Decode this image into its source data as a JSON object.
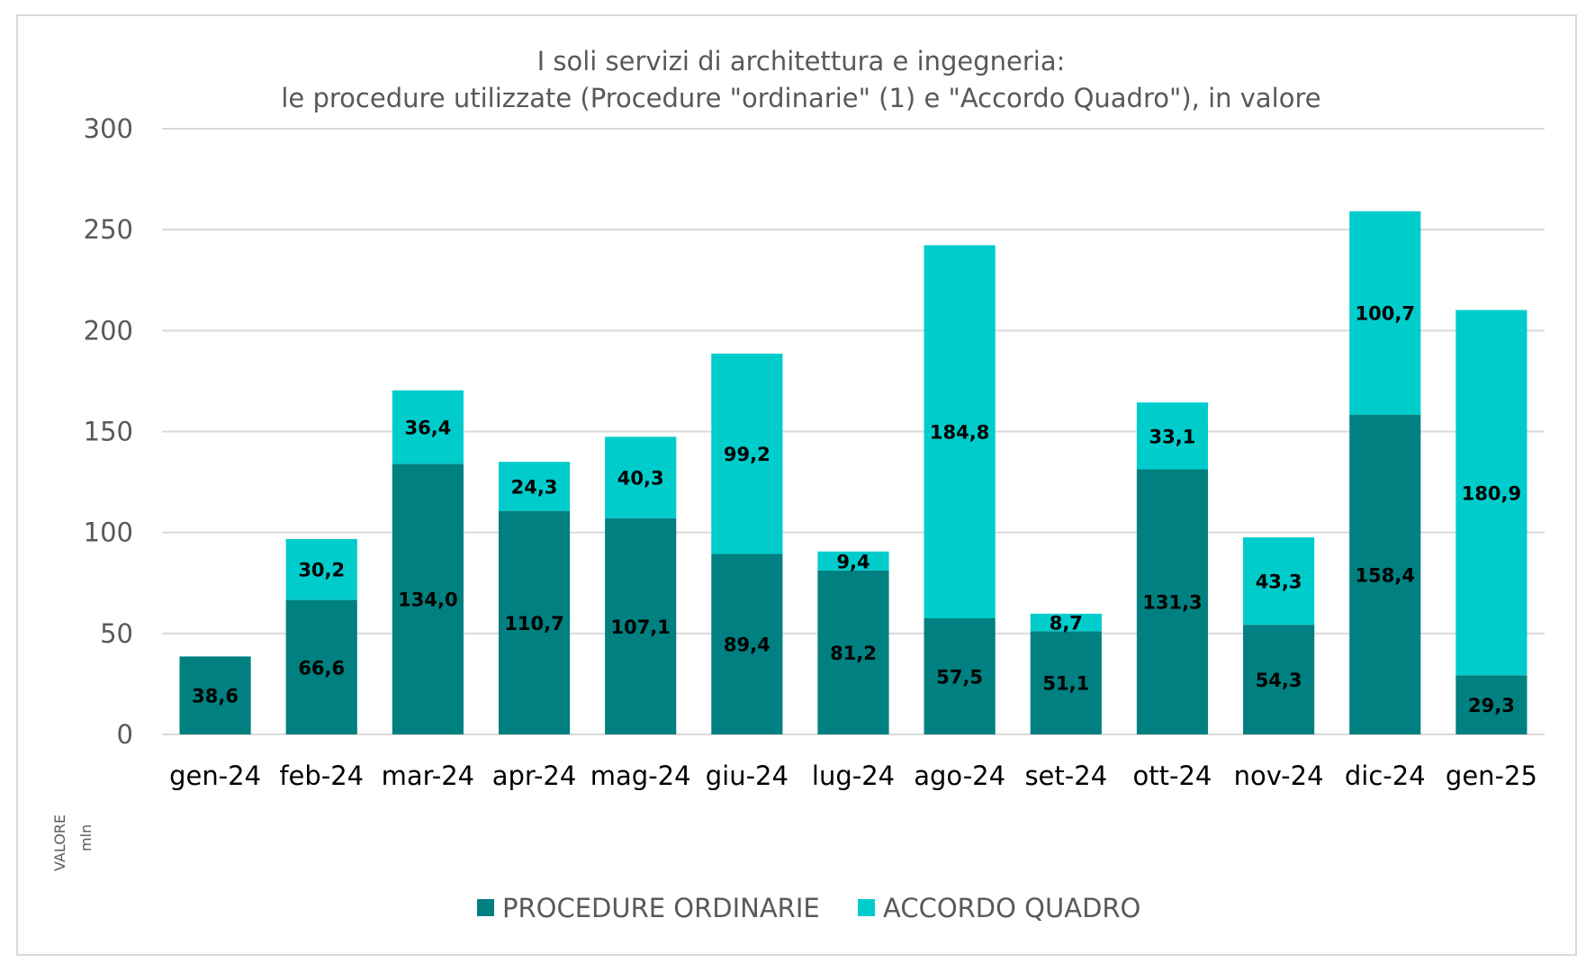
{
  "chart_data": {
    "type": "bar",
    "stacked": true,
    "title": "I soli servizi di architettura e ingegneria:",
    "subtitle": "le procedure utilizzate (Procedure \"ordinarie\" (1) e \"Accordo Quadro\"), in valore",
    "xlabel": "",
    "ylabel": "VALORE",
    "ylabel_unit": "mln",
    "ylim": [
      0,
      300
    ],
    "yticks": [
      0,
      50,
      100,
      150,
      200,
      250,
      300
    ],
    "grid": true,
    "legend_position": "bottom",
    "categories": [
      "gen-24",
      "feb-24",
      "mar-24",
      "apr-24",
      "mag-24",
      "giu-24",
      "lug-24",
      "ago-24",
      "set-24",
      "ott-24",
      "nov-24",
      "dic-24",
      "gen-25"
    ],
    "series": [
      {
        "name": "PROCEDURE ORDINARIE",
        "color": "#008080",
        "values": [
          38.6,
          66.6,
          134.0,
          110.7,
          107.1,
          89.4,
          81.2,
          57.5,
          51.1,
          131.3,
          54.3,
          158.4,
          29.3
        ],
        "labels": [
          "38,6",
          "66,6",
          "134,0",
          "110,7",
          "107,1",
          "89,4",
          "81,2",
          "57,5",
          "51,1",
          "131,3",
          "54,3",
          "158,4",
          "29,3"
        ]
      },
      {
        "name": "ACCORDO QUADRO",
        "color": "#00cccc",
        "values": [
          null,
          30.2,
          36.4,
          24.3,
          40.3,
          99.2,
          9.4,
          184.8,
          8.7,
          33.1,
          43.3,
          100.7,
          180.9
        ],
        "labels": [
          null,
          "30,2",
          "36,4",
          "24,3",
          "40,3",
          "99,2",
          "9,4",
          "184,8",
          "8,7",
          "33,1",
          "43,3",
          "100,7",
          "180,9"
        ]
      }
    ]
  }
}
